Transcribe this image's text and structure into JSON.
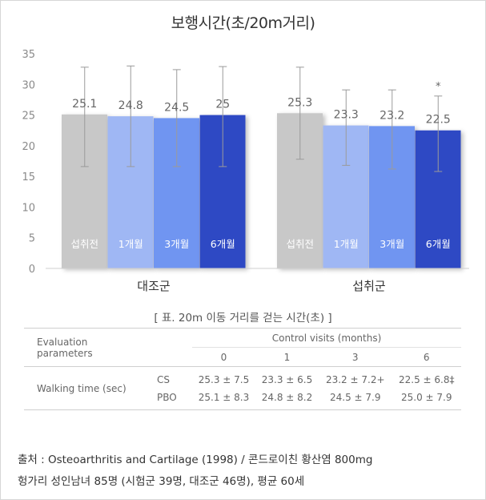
{
  "chart_data": {
    "type": "bar",
    "title": "보행시간(초/20m거리)",
    "ylim": [
      0,
      35
    ],
    "yticks": [
      0,
      5,
      10,
      15,
      20,
      25,
      30,
      35
    ],
    "grid": false,
    "groups": [
      {
        "label": "대조군",
        "bars": [
          {
            "category": "섭취전",
            "value": 25.1,
            "value_label": "25.1",
            "error_low": 16.6,
            "error_high": 32.8,
            "color": "#c8c8c8",
            "asterisk": false
          },
          {
            "category": "1개월",
            "value": 24.8,
            "value_label": "24.8",
            "error_low": 16.6,
            "error_high": 33.0,
            "color": "#9fb7f4",
            "asterisk": false
          },
          {
            "category": "3개월",
            "value": 24.5,
            "value_label": "24.5",
            "error_low": 16.6,
            "error_high": 32.4,
            "color": "#6f95f1",
            "asterisk": false
          },
          {
            "category": "6개월",
            "value": 25,
            "value_label": "25",
            "error_low": 16.6,
            "error_high": 32.9,
            "color": "#2f49c4",
            "asterisk": false
          }
        ]
      },
      {
        "label": "섭취군",
        "bars": [
          {
            "category": "섭취전",
            "value": 25.3,
            "value_label": "25.3",
            "error_low": 17.8,
            "error_high": 32.8,
            "color": "#c8c8c8",
            "asterisk": false
          },
          {
            "category": "1개월",
            "value": 23.3,
            "value_label": "23.3",
            "error_low": 16.8,
            "error_high": 29.1,
            "color": "#9fb7f4",
            "asterisk": false
          },
          {
            "category": "3개월",
            "value": 23.2,
            "value_label": "23.2",
            "error_low": 16.2,
            "error_high": 29.1,
            "color": "#6f95f1",
            "asterisk": false
          },
          {
            "category": "6개월",
            "value": 22.5,
            "value_label": "22.5",
            "error_low": 15.8,
            "error_high": 28.1,
            "color": "#2f49c4",
            "asterisk": true
          }
        ]
      }
    ]
  },
  "table": {
    "caption": "[ 표. 20m 이동 거리를 걷는 시간(초) ]",
    "param_header": "Evaluation\nparameters",
    "visits_header": "Control visits (months)",
    "months": [
      "0",
      "1",
      "3",
      "6"
    ],
    "row_label": "Walking time (sec)",
    "groups": [
      "CS",
      "PBO"
    ],
    "cs_values": [
      "25.3 ± 7.5",
      "23.3 ± 6.5",
      "23.2 ± 7.2+",
      "22.5 ± 6.8‡"
    ],
    "pbo_values": [
      "25.1 ± 8.3",
      "24.8 ± 8.2",
      "24.5 ± 7.9",
      "25.0 ± 7.9"
    ]
  },
  "source": {
    "line1": "출처 :  Osteoarthritis and Cartilage (1998) / 콘드로이친 황산염 800mg",
    "line2": "헝가리 성인남녀 85명 (시험군 39명, 대조군 46명), 평균 60세"
  },
  "colors": {
    "axis_text": "#8a8a8a",
    "value_label": "#666666",
    "error_bar": "#9a9a9a"
  }
}
